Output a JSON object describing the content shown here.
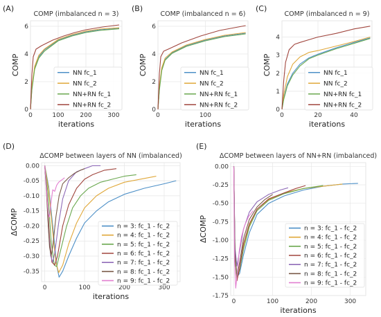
{
  "chart_data": [
    {
      "label": "(A)",
      "type": "line",
      "title": "COMP (imbalanced n = 3)",
      "xlabel": "iterations",
      "ylabel": "COMP",
      "xlim": [
        0,
        330
      ],
      "ylim": [
        0,
        6.4
      ],
      "xticks": [
        0,
        100,
        200,
        300
      ],
      "yticks": [
        0,
        2,
        4,
        6
      ],
      "grid": true,
      "legend": "center-right",
      "series": [
        {
          "name": "NN fc_1",
          "color": "#4c8fc7",
          "x": [
            0,
            5,
            15,
            30,
            50,
            100,
            150,
            200,
            250,
            320
          ],
          "y": [
            0,
            1.5,
            3.0,
            3.8,
            4.3,
            5.0,
            5.35,
            5.6,
            5.75,
            5.85
          ]
        },
        {
          "name": "NN fc_2",
          "color": "#e0a83a",
          "x": [
            0,
            5,
            15,
            30,
            50,
            100,
            150,
            200,
            250,
            320
          ],
          "y": [
            0,
            1.6,
            3.1,
            3.9,
            4.35,
            5.05,
            5.4,
            5.65,
            5.8,
            5.9
          ]
        },
        {
          "name": "NN+RN fc_1",
          "color": "#6aa84f",
          "x": [
            0,
            5,
            15,
            30,
            50,
            100,
            150,
            200,
            250,
            320
          ],
          "y": [
            0,
            1.4,
            2.9,
            3.7,
            4.2,
            4.95,
            5.3,
            5.55,
            5.7,
            5.82
          ]
        },
        {
          "name": "NN+RN fc_2",
          "color": "#a0453d",
          "x": [
            0,
            5,
            10,
            20,
            40,
            80,
            120,
            160,
            200,
            260,
            320
          ],
          "y": [
            0,
            2.5,
            3.8,
            4.35,
            4.6,
            5.0,
            5.3,
            5.55,
            5.75,
            5.95,
            6.1
          ]
        }
      ]
    },
    {
      "label": "(B)",
      "type": "line",
      "title": "COMP (imbalanced n = 6)",
      "xlabel": "iterations",
      "ylabel": "COMP",
      "xlim": [
        0,
        190
      ],
      "ylim": [
        0,
        6.4
      ],
      "xticks": [
        0,
        100
      ],
      "yticks": [
        0,
        2,
        4,
        6
      ],
      "grid": true,
      "legend": "center-right",
      "series": [
        {
          "name": "NN fc_1",
          "color": "#4c8fc7",
          "x": [
            0,
            3,
            8,
            15,
            30,
            60,
            100,
            140,
            185
          ],
          "y": [
            0,
            1.5,
            2.9,
            3.6,
            4.1,
            4.6,
            5.0,
            5.3,
            5.5
          ]
        },
        {
          "name": "NN fc_2",
          "color": "#e0a83a",
          "x": [
            0,
            3,
            8,
            15,
            30,
            60,
            100,
            140,
            185
          ],
          "y": [
            0,
            1.6,
            3.0,
            3.7,
            4.15,
            4.65,
            5.05,
            5.35,
            5.55
          ]
        },
        {
          "name": "NN+RN fc_1",
          "color": "#6aa84f",
          "x": [
            0,
            3,
            8,
            15,
            30,
            60,
            100,
            140,
            185
          ],
          "y": [
            0,
            1.4,
            2.8,
            3.55,
            4.05,
            4.55,
            4.95,
            5.25,
            5.45
          ]
        },
        {
          "name": "NN+RN fc_2",
          "color": "#a0453d",
          "x": [
            0,
            3,
            6,
            12,
            25,
            50,
            90,
            130,
            185
          ],
          "y": [
            0,
            2.6,
            3.8,
            4.2,
            4.4,
            4.8,
            5.3,
            5.7,
            6.05
          ]
        }
      ]
    },
    {
      "label": "(C)",
      "type": "line",
      "title": "COMP (imbalanced n = 9)",
      "xlabel": "iterations",
      "ylabel": "COMP",
      "xlim": [
        0,
        50
      ],
      "ylim": [
        0,
        4.9
      ],
      "xticks": [
        0,
        20,
        40
      ],
      "yticks": [
        0,
        1,
        2,
        3,
        4
      ],
      "grid": true,
      "legend": "center-right",
      "series": [
        {
          "name": "NN fc_1",
          "color": "#4c8fc7",
          "x": [
            0,
            1,
            3,
            6,
            10,
            15,
            20,
            30,
            40,
            49
          ],
          "y": [
            0,
            0.6,
            1.4,
            2.0,
            2.5,
            2.85,
            3.05,
            3.4,
            3.7,
            3.95
          ]
        },
        {
          "name": "NN fc_2",
          "color": "#e0a83a",
          "x": [
            0,
            1,
            3,
            6,
            10,
            15,
            20,
            30,
            40,
            49
          ],
          "y": [
            0,
            0.8,
            1.8,
            2.5,
            2.9,
            3.15,
            3.25,
            3.5,
            3.75,
            4.0
          ]
        },
        {
          "name": "NN+RN fc_1",
          "color": "#6aa84f",
          "x": [
            0,
            1,
            3,
            6,
            10,
            15,
            20,
            30,
            40,
            49
          ],
          "y": [
            0,
            0.55,
            1.3,
            1.9,
            2.4,
            2.8,
            3.0,
            3.35,
            3.65,
            3.92
          ]
        },
        {
          "name": "NN+RN fc_2",
          "color": "#a0453d",
          "x": [
            0,
            1,
            2,
            4,
            7,
            10,
            15,
            20,
            30,
            40,
            49
          ],
          "y": [
            0,
            1.6,
            2.6,
            3.3,
            3.6,
            3.7,
            3.85,
            4.0,
            4.2,
            4.45,
            4.6
          ]
        }
      ]
    },
    {
      "label": "(D)",
      "type": "line",
      "title": "ΔCOMP between layers of NN (imbalanced)",
      "xlabel": "iterations",
      "ylabel": "ΔCOMP",
      "xlim": [
        -8,
        340
      ],
      "ylim": [
        -0.385,
        0.01
      ],
      "xticks": [
        0,
        100,
        200,
        300
      ],
      "yticks": [
        0.0,
        -0.05,
        -0.1,
        -0.15,
        -0.2,
        -0.25,
        -0.3,
        -0.35
      ],
      "grid": true,
      "legend": "lower-right",
      "series": [
        {
          "name": "n = 3: fc_1 - fc_2",
          "color": "#4c8fc7",
          "x": [
            0,
            10,
            20,
            30,
            36,
            45,
            60,
            80,
            100,
            130,
            160,
            200,
            250,
            300,
            330
          ],
          "y": [
            0,
            -0.07,
            -0.2,
            -0.33,
            -0.37,
            -0.35,
            -0.3,
            -0.24,
            -0.19,
            -0.15,
            -0.12,
            -0.095,
            -0.075,
            -0.06,
            -0.05
          ]
        },
        {
          "name": "n = 4: fc_1 - fc_2",
          "color": "#e0a83a",
          "x": [
            0,
            10,
            20,
            28,
            35,
            45,
            60,
            80,
            100,
            130,
            160,
            200,
            240,
            280
          ],
          "y": [
            0,
            -0.08,
            -0.22,
            -0.32,
            -0.355,
            -0.33,
            -0.26,
            -0.19,
            -0.14,
            -0.1,
            -0.075,
            -0.055,
            -0.045,
            -0.035
          ]
        },
        {
          "name": "n = 5: fc_1 - fc_2",
          "color": "#6aa84f",
          "x": [
            0,
            8,
            16,
            24,
            30,
            40,
            55,
            70,
            90,
            110,
            140,
            170,
            200,
            230
          ],
          "y": [
            0,
            -0.09,
            -0.25,
            -0.33,
            -0.335,
            -0.28,
            -0.2,
            -0.14,
            -0.1,
            -0.075,
            -0.055,
            -0.045,
            -0.035,
            -0.03
          ]
        },
        {
          "name": "n = 6: fc_1 - fc_2",
          "color": "#a0453d",
          "x": [
            0,
            6,
            12,
            18,
            25,
            32,
            45,
            60,
            80,
            100,
            120,
            150,
            180
          ],
          "y": [
            0,
            -0.1,
            -0.24,
            -0.32,
            -0.33,
            -0.3,
            -0.2,
            -0.13,
            -0.075,
            -0.045,
            -0.03,
            -0.015,
            -0.01
          ]
        },
        {
          "name": "n = 7: fc_1 - fc_2",
          "color": "#8f6bb8",
          "x": [
            0,
            5,
            10,
            15,
            20,
            25,
            35,
            45,
            60,
            80,
            100,
            120,
            140
          ],
          "y": [
            0,
            -0.1,
            -0.22,
            -0.3,
            -0.32,
            -0.29,
            -0.19,
            -0.11,
            -0.05,
            -0.02,
            -0.01,
            0,
            0
          ]
        },
        {
          "name": "n = 8: fc_1 - fc_2",
          "color": "#7a5a48",
          "x": [
            0,
            4,
            8,
            12,
            16,
            20,
            28,
            36,
            45,
            60,
            75,
            90,
            100
          ],
          "y": [
            0,
            -0.08,
            -0.18,
            -0.27,
            -0.3,
            -0.27,
            -0.17,
            -0.1,
            -0.06,
            -0.04,
            -0.025,
            -0.015,
            -0.01
          ]
        },
        {
          "name": "n = 9: fc_1 - fc_2",
          "color": "#e27fd0",
          "x": [
            0,
            3,
            6,
            9,
            12,
            16,
            20,
            25,
            30,
            35,
            40,
            45,
            50
          ],
          "y": [
            0,
            -0.05,
            -0.11,
            -0.16,
            -0.17,
            -0.12,
            -0.08,
            -0.085,
            -0.065,
            -0.055,
            -0.05,
            -0.045,
            -0.04
          ]
        }
      ]
    },
    {
      "label": "(E)",
      "type": "line",
      "title": "ΔCOMP between layers of NN+RN (imbalanced)",
      "xlabel": "iterations",
      "ylabel": "ΔCOMP",
      "xlim": [
        -8,
        340
      ],
      "ylim": [
        -1.75,
        0.05
      ],
      "xticks": [
        0,
        100,
        200,
        300
      ],
      "yticks": [
        0.0,
        -0.25,
        -0.5,
        -0.75,
        -1.0,
        -1.25,
        -1.5,
        -1.75
      ],
      "grid": true,
      "legend": "lower-right",
      "series": [
        {
          "name": "n = 3: fc_1 - fc_2",
          "color": "#4c8fc7",
          "x": [
            0,
            3,
            8,
            15,
            25,
            40,
            60,
            90,
            130,
            180,
            230,
            280,
            320
          ],
          "y": [
            0,
            -1.2,
            -1.5,
            -1.45,
            -1.2,
            -0.9,
            -0.65,
            -0.5,
            -0.4,
            -0.32,
            -0.27,
            -0.24,
            -0.23
          ]
        },
        {
          "name": "n = 4: fc_1 - fc_2",
          "color": "#e0a83a",
          "x": [
            0,
            3,
            8,
            15,
            25,
            40,
            60,
            90,
            130,
            180,
            230,
            280
          ],
          "y": [
            0,
            -1.2,
            -1.52,
            -1.4,
            -1.1,
            -0.8,
            -0.58,
            -0.45,
            -0.36,
            -0.3,
            -0.27,
            -0.24
          ]
        },
        {
          "name": "n = 5: fc_1 - fc_2",
          "color": "#6aa84f",
          "x": [
            0,
            3,
            8,
            15,
            25,
            40,
            60,
            90,
            130,
            180,
            230
          ],
          "y": [
            0,
            -1.15,
            -1.5,
            -1.4,
            -1.12,
            -0.82,
            -0.6,
            -0.46,
            -0.37,
            -0.3,
            -0.26
          ]
        },
        {
          "name": "n = 6: fc_1 - fc_2",
          "color": "#a0453d",
          "x": [
            0,
            3,
            8,
            15,
            25,
            40,
            60,
            90,
            130,
            160,
            185
          ],
          "y": [
            0,
            -1.2,
            -1.55,
            -1.38,
            -1.05,
            -0.78,
            -0.58,
            -0.44,
            -0.36,
            -0.3,
            -0.26
          ]
        },
        {
          "name": "n = 7: fc_1 - fc_2",
          "color": "#8f6bb8",
          "x": [
            0,
            3,
            8,
            15,
            25,
            40,
            60,
            90,
            120,
            140
          ],
          "y": [
            0,
            -1.1,
            -1.35,
            -1.15,
            -0.85,
            -0.62,
            -0.48,
            -0.38,
            -0.32,
            -0.29
          ]
        },
        {
          "name": "n = 8: fc_1 - fc_2",
          "color": "#7a5a48",
          "x": [
            0,
            3,
            8,
            15,
            25,
            40,
            60,
            80,
            100
          ],
          "y": [
            0,
            -1.25,
            -1.5,
            -1.3,
            -0.98,
            -0.72,
            -0.55,
            -0.45,
            -0.38
          ]
        },
        {
          "name": "n = 9: fc_1 - fc_2",
          "color": "#e27fd0",
          "x": [
            0,
            2,
            5,
            9,
            14,
            20,
            28,
            38,
            50
          ],
          "y": [
            0,
            -1.3,
            -1.65,
            -1.45,
            -1.15,
            -0.95,
            -0.8,
            -0.68,
            -0.6
          ]
        }
      ]
    }
  ]
}
